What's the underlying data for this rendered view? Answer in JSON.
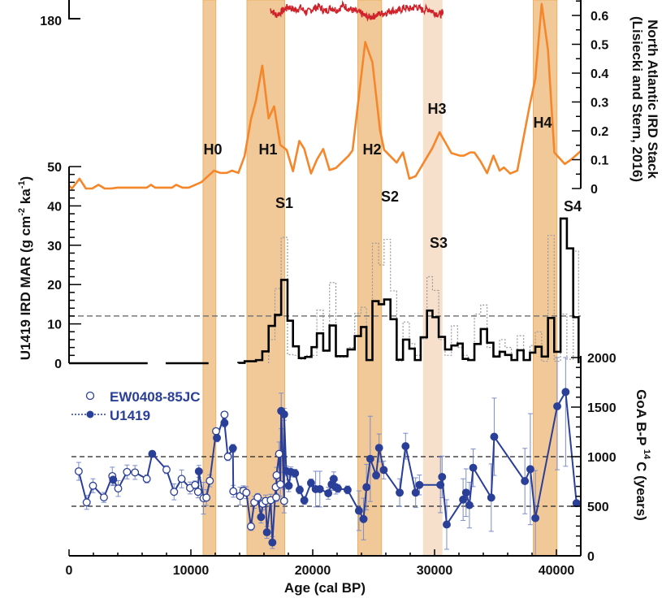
{
  "chart_data": [
    {
      "type": "line",
      "title": "",
      "ylabel_lines": [
        "North Atlantic IRD Stack",
        "(Lisiecki and Stern, 2016)"
      ],
      "ylim": [
        0,
        0.65
      ],
      "yticks": [
        "0",
        "0.1",
        "0.2",
        "0.3",
        "0.4",
        "0.5",
        "0.6"
      ],
      "color": "#f5872a",
      "x": [
        0,
        240,
        860,
        1380,
        1900,
        2410,
        2930,
        3450,
        3970,
        6380,
        6720,
        7070,
        8450,
        8790,
        9310,
        9830,
        10860,
        11900,
        12410,
        12930,
        13380,
        13900,
        14410,
        14930,
        15340,
        15860,
        16380,
        16830,
        17340,
        17860,
        18380,
        18900,
        19310,
        19860,
        20340,
        20860,
        21380,
        21900,
        22930,
        23270,
        24310,
        24900,
        25520,
        25860,
        26890,
        27410,
        27930,
        28450,
        29830,
        30410,
        31380,
        32070,
        32410,
        32930,
        33270,
        33790,
        34310,
        34830,
        35340,
        35690,
        36210,
        36790,
        37760,
        38270,
        38790,
        39310,
        39830,
        40690,
        41200,
        42000
      ],
      "values": [
        0.01,
        0,
        0.034,
        0,
        0,
        0.013,
        0,
        0,
        0.003,
        0.003,
        0.013,
        0.003,
        0.003,
        0.013,
        0.003,
        0.003,
        0.022,
        0.062,
        0.054,
        0.054,
        0.062,
        0.054,
        0.113,
        0.24,
        0.305,
        0.426,
        0.243,
        0.285,
        0.151,
        0.134,
        0.06,
        0.165,
        0.137,
        0.052,
        0.1,
        0.137,
        0.064,
        0.071,
        0.113,
        0.132,
        0.508,
        0.437,
        0.203,
        0.134,
        0.09,
        0.125,
        0.034,
        0.043,
        0.141,
        0.195,
        0.123,
        0.114,
        0.114,
        0.125,
        0.125,
        0.093,
        0.053,
        0.114,
        0.062,
        0.073,
        0.052,
        0.062,
        0.278,
        0.381,
        0.64,
        0.48,
        0.125,
        0.085,
        0.1,
        0.13
      ]
    },
    {
      "type": "line",
      "title": "",
      "ytick_label": "180",
      "color": "#d0222a",
      "x": [
        16500,
        17000,
        17500,
        18000,
        18500,
        19000,
        19500,
        20000,
        20500,
        21000,
        21500,
        22000,
        22500,
        23000,
        23500,
        24000,
        24500,
        25000,
        25500,
        26000,
        26500,
        27000,
        27500,
        28000,
        28500,
        29000,
        29500,
        30000,
        30500,
        30700
      ],
      "values": [
        188,
        183,
        186,
        190,
        187,
        189,
        185,
        188,
        190,
        186,
        189,
        187,
        191,
        188,
        186,
        184,
        181,
        182,
        184,
        185,
        187,
        186,
        189,
        188,
        190,
        187,
        188,
        185,
        183,
        187
      ]
    },
    {
      "type": "bar",
      "style": "step",
      "ylabel_parts": {
        "main": "U1419 IRD MAR (g cm",
        "sup1": "-2",
        "mid": " ka",
        "sup2": "-1",
        "end": ")"
      },
      "ylim": [
        0,
        50
      ],
      "yticks": [
        "0",
        "10",
        "20",
        "30",
        "40",
        "50"
      ],
      "threshold": 12,
      "zero_segments": [
        [
          0,
          6450
        ],
        [
          7930,
          11450
        ]
      ],
      "edges": [
        13900,
        14410,
        15340,
        15860,
        16380,
        16900,
        17410,
        17930,
        18380,
        18860,
        19380,
        19900,
        20340,
        20860,
        21380,
        21900,
        22860,
        23450,
        23960,
        24410,
        24900,
        25410,
        25860,
        26380,
        26890,
        27410,
        27930,
        28380,
        28860,
        29380,
        29830,
        30340,
        30860,
        31380,
        31890,
        32310,
        32760,
        33270,
        33790,
        34310,
        34830,
        35340,
        35790,
        36310,
        36790,
        37310,
        37830,
        38270,
        38790,
        39310,
        39820,
        40340,
        40860,
        41380,
        41820
      ],
      "series": [
        {
          "name": "U1419 IRD MAR",
          "values": [
            0.1,
            0.5,
            0.8,
            3.0,
            9.5,
            12.3,
            21.2,
            10.8,
            4.3,
            1.3,
            1.6,
            4.1,
            7.6,
            3.2,
            9.6,
            1.8,
            3.5,
            6.9,
            9.2,
            0.8,
            15.8,
            15.0,
            16.2,
            11.2,
            0.9,
            6.0,
            3.7,
            0.8,
            6.6,
            13.4,
            11.7,
            6.7,
            3.5,
            4.5,
            5.0,
            1.1,
            0.8,
            4.9,
            8.7,
            5.2,
            1.7,
            2.9,
            2.1,
            0.8,
            3.3,
            0.8,
            2.7,
            4.2,
            1.7,
            11.5,
            2.9,
            36.8,
            29.2,
            11.7
          ]
        },
        {
          "name": "uncertainty envelope",
          "start_edge_index": 4,
          "values": [
            6,
            19,
            32,
            2.2,
            2,
            1,
            2,
            2,
            13.5,
            3,
            20.5,
            1.5,
            4,
            12.7,
            14.2,
            1,
            30.5,
            25,
            31.5,
            18.4,
            0.5,
            10.5,
            5,
            2,
            6.2,
            22,
            18.5,
            6,
            2,
            9.5,
            4,
            2,
            1,
            12.5,
            14.8,
            4,
            2,
            6,
            4,
            1,
            7,
            1,
            4.5,
            8,
            0.5,
            32.5,
            0.5,
            12.5,
            1,
            28.5
          ]
        }
      ]
    },
    {
      "type": "scatter",
      "ylabel_parts": {
        "main": "GoA B-P ",
        "sup": "14",
        "end": "C (years)"
      },
      "ylim": [
        0,
        2000
      ],
      "yticks": [
        "0",
        "500",
        "1000",
        "1500",
        "2000"
      ],
      "reference_lines": [
        500,
        1000
      ],
      "legend_position": "top-left",
      "series": [
        {
          "name": "EW0408-85JC",
          "marker": "open-circle",
          "color": "#2a3f97",
          "points": [
            [
              793,
              852,
              90
            ],
            [
              1448,
              539,
              70
            ],
            [
              1965,
              707,
              70
            ],
            [
              2862,
              589,
              50
            ],
            [
              3551,
              804,
              90
            ],
            [
              4034,
              679,
              80
            ],
            [
              4758,
              846,
              70
            ],
            [
              5413,
              841,
              70
            ],
            [
              6379,
              776,
              40
            ],
            [
              7999,
              869,
              40
            ],
            [
              8620,
              645,
              80
            ],
            [
              9241,
              776,
              90
            ],
            [
              9930,
              684,
              60
            ],
            [
              10344,
              715,
              40
            ],
            [
              10585,
              645,
              60
            ],
            [
              11034,
              581,
              160
            ],
            [
              11275,
              587,
              80
            ],
            [
              11551,
              757,
              60
            ],
            [
              12068,
              1257,
              30
            ],
            [
              12758,
              1424,
              30
            ],
            [
              13034,
              1000,
              40
            ],
            [
              13482,
              651,
              60
            ],
            [
              14034,
              603,
              90
            ],
            [
              14310,
              656,
              50
            ],
            [
              14551,
              637,
              60
            ],
            [
              14930,
              296,
              40
            ],
            [
              15206,
              539,
              60
            ],
            [
              15482,
              589,
              40
            ],
            [
              15896,
              525,
              60
            ],
            [
              16137,
              553,
              60
            ],
            [
              16551,
              561,
              60
            ],
            [
              16965,
              693,
              80
            ],
            [
              17000,
              589,
              40
            ],
            [
              17034,
              813,
              80
            ],
            [
              17240,
              1028,
              120
            ],
            [
              17344,
              721,
              120
            ],
            [
              17654,
              553,
              120
            ]
          ]
        },
        {
          "name": "U1419",
          "marker": "filled-circle",
          "color": "#2a3f97",
          "points": [
            [
              3620,
              768,
              60
            ],
            [
              6827,
              1028,
              30
            ],
            [
              10654,
              852,
              60
            ],
            [
              12137,
              1190,
              40
            ],
            [
              12758,
              1341,
              40
            ],
            [
              13448,
              1084,
              40
            ],
            [
              15758,
              391,
              60
            ],
            [
              16240,
              237,
              60
            ],
            [
              16689,
              134,
              60
            ],
            [
              17413,
              1461,
              180
            ],
            [
              17654,
              1427,
              60
            ],
            [
              17827,
              855,
              50
            ],
            [
              18033,
              707,
              60
            ],
            [
              18206,
              846,
              50
            ],
            [
              18551,
              832,
              40
            ],
            [
              18930,
              665,
              40
            ],
            [
              19310,
              559,
              40
            ],
            [
              19861,
              735,
              40
            ],
            [
              20240,
              673,
              180
            ],
            [
              20585,
              673,
              180
            ],
            [
              21275,
              631,
              60
            ],
            [
              21551,
              721,
              60
            ],
            [
              21723,
              776,
              70
            ],
            [
              21896,
              693,
              70
            ],
            [
              22068,
              679,
              40
            ],
            [
              22861,
              665,
              40
            ],
            [
              23792,
              455,
              200
            ],
            [
              24171,
              371,
              210
            ],
            [
              24413,
              693,
              230
            ],
            [
              24723,
              978,
              430
            ],
            [
              25206,
              813,
              40
            ],
            [
              25447,
              1089,
              140
            ],
            [
              25826,
              866,
              90
            ],
            [
              27137,
              637,
              140
            ],
            [
              27620,
              1106,
              130
            ],
            [
              28447,
              637,
              150
            ],
            [
              28757,
              715,
              100
            ],
            [
              30481,
              715,
              280
            ],
            [
              30619,
              796,
              210
            ],
            [
              30998,
              316,
              250
            ],
            [
              32343,
              567,
              210
            ],
            [
              32585,
              637,
              240
            ],
            [
              32861,
              511,
              230
            ],
            [
              33170,
              888,
              190
            ],
            [
              34653,
              587,
              340
            ],
            [
              34895,
              1201,
              390
            ],
            [
              37412,
              754,
              330
            ],
            [
              37860,
              874,
              560
            ],
            [
              38274,
              380,
              480
            ],
            [
              40067,
              1508,
              640
            ],
            [
              40756,
              1653,
              750
            ],
            [
              41652,
              531,
              20
            ]
          ]
        }
      ]
    }
  ],
  "xaxis": {
    "label": "Age (cal BP)",
    "xlim": [
      0,
      42000
    ],
    "ticks": [
      "0",
      "10000",
      "20000",
      "30000",
      "40000"
    ]
  },
  "events": [
    {
      "label": "H0",
      "start": 11000,
      "end": 12050,
      "shade": "#f1c999"
    },
    {
      "label": "H1",
      "start": 14600,
      "end": 17700,
      "shade": "#f1c999"
    },
    {
      "label": "H2",
      "start": 23700,
      "end": 25650,
      "shade": "#f1c999"
    },
    {
      "label": "H3",
      "start": 29050,
      "end": 30650,
      "shade": "#f6e0cb"
    },
    {
      "label": "H4",
      "start": 38100,
      "end": 40050,
      "shade": "#f1c999"
    }
  ],
  "s_labels": [
    "S1",
    "S2",
    "S3",
    "S4"
  ]
}
